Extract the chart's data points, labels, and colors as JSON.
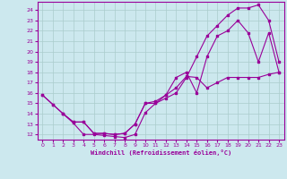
{
  "background_color": "#cce8ee",
  "grid_color": "#aacccc",
  "line_color": "#990099",
  "xlabel": "Windchill (Refroidissement éolien,°C)",
  "ylim": [
    11.5,
    24.8
  ],
  "xlim": [
    -0.5,
    23.5
  ],
  "yticks": [
    12,
    13,
    14,
    15,
    16,
    17,
    18,
    19,
    20,
    21,
    22,
    23,
    24
  ],
  "xticks": [
    0,
    1,
    2,
    3,
    4,
    5,
    6,
    7,
    8,
    9,
    10,
    11,
    12,
    13,
    14,
    15,
    16,
    17,
    18,
    19,
    20,
    21,
    22,
    23
  ],
  "line1_x": [
    0,
    1,
    2,
    3,
    4,
    5,
    6,
    7,
    8,
    9,
    10,
    11,
    12,
    13,
    14,
    15,
    16,
    17,
    18,
    19,
    20,
    21,
    22,
    23
  ],
  "line1_y": [
    15.8,
    14.9,
    14.0,
    13.1,
    12.0,
    12.0,
    11.9,
    11.8,
    11.7,
    12.0,
    14.1,
    15.0,
    15.8,
    17.5,
    18.0,
    16.0,
    19.5,
    21.5,
    22.0,
    23.0,
    21.8,
    19.0,
    21.8,
    18.0
  ],
  "line2_x": [
    0,
    1,
    2,
    3,
    4,
    5,
    6,
    7,
    8,
    9,
    10,
    11,
    12,
    13,
    14,
    15,
    16,
    17,
    18,
    19,
    20,
    21,
    22,
    23
  ],
  "line2_y": [
    15.8,
    14.9,
    14.0,
    13.2,
    13.2,
    12.1,
    12.1,
    12.0,
    12.1,
    13.0,
    15.0,
    15.0,
    15.5,
    16.0,
    17.5,
    19.5,
    21.5,
    22.5,
    23.5,
    24.2,
    24.2,
    24.5,
    23.0,
    19.0
  ],
  "line3_x": [
    2,
    3,
    4,
    5,
    6,
    7,
    8,
    9,
    10,
    11,
    12,
    13,
    14,
    15,
    16,
    17,
    18,
    19,
    20,
    21,
    22,
    23
  ],
  "line3_y": [
    14.0,
    13.2,
    13.2,
    12.1,
    12.1,
    12.0,
    12.1,
    13.0,
    15.0,
    15.2,
    15.8,
    16.5,
    17.6,
    17.5,
    16.5,
    17.0,
    17.5,
    17.5,
    17.5,
    17.5,
    17.8,
    18.0
  ]
}
